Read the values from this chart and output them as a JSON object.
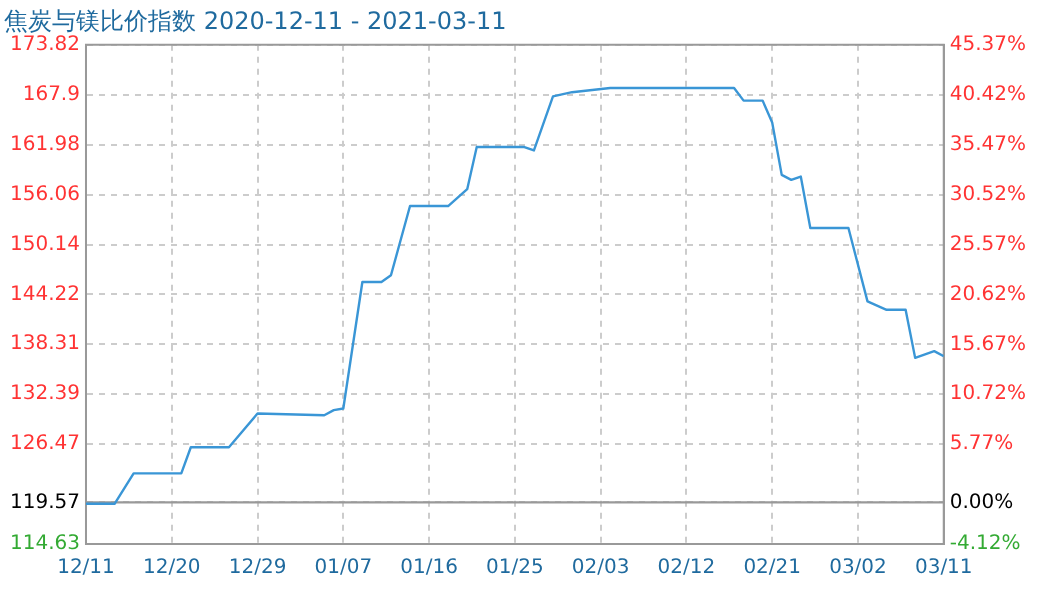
{
  "chart_data": {
    "type": "line",
    "title": "焦炭与镁比价指数 2020-12-11 - 2021-03-11",
    "x": [
      "2020-12-11",
      "2020-12-14",
      "2020-12-16",
      "2020-12-21",
      "2020-12-22",
      "2020-12-26",
      "2020-12-29",
      "2021-01-05",
      "2021-01-06",
      "2021-01-07",
      "2021-01-09",
      "2021-01-11",
      "2021-01-12",
      "2021-01-14",
      "2021-01-18",
      "2021-01-20",
      "2021-01-21",
      "2021-01-26",
      "2021-01-27",
      "2021-01-29",
      "2021-01-31",
      "2021-02-04",
      "2021-02-17",
      "2021-02-18",
      "2021-02-20",
      "2021-02-21",
      "2021-02-22",
      "2021-02-23",
      "2021-02-24",
      "2021-02-25",
      "2021-03-01",
      "2021-03-03",
      "2021-03-05",
      "2021-03-07",
      "2021-03-08",
      "2021-03-10",
      "2021-03-11"
    ],
    "series": [
      {
        "color": "#3a96d6",
        "values": [
          119.4,
          119.4,
          123.0,
          123.0,
          126.1,
          126.1,
          130.1,
          129.9,
          130.5,
          130.7,
          145.7,
          145.7,
          146.5,
          154.7,
          154.7,
          156.7,
          161.7,
          161.7,
          161.3,
          167.7,
          168.2,
          168.7,
          168.7,
          167.2,
          167.2,
          164.6,
          158.4,
          157.8,
          158.2,
          152.1,
          152.1,
          143.4,
          142.4,
          142.4,
          136.7,
          137.5,
          136.9
        ]
      }
    ],
    "xlim": [
      "2020-12-11",
      "2021-03-11"
    ],
    "xticks": [
      {
        "value": "2020-12-11",
        "label": "12/11"
      },
      {
        "value": "2020-12-20",
        "label": "12/20"
      },
      {
        "value": "2020-12-29",
        "label": "12/29"
      },
      {
        "value": "2021-01-07",
        "label": "01/07"
      },
      {
        "value": "2021-01-16",
        "label": "01/16"
      },
      {
        "value": "2021-01-25",
        "label": "01/25"
      },
      {
        "value": "2021-02-03",
        "label": "02/03"
      },
      {
        "value": "2021-02-12",
        "label": "02/12"
      },
      {
        "value": "2021-02-21",
        "label": "02/21"
      },
      {
        "value": "2021-03-02",
        "label": "03/02"
      },
      {
        "value": "2021-03-11",
        "label": "03/11"
      }
    ],
    "ylim": [
      114.63,
      173.82
    ],
    "yticks": [
      114.63,
      119.57,
      126.47,
      132.39,
      138.31,
      144.22,
      150.14,
      156.06,
      161.98,
      167.9,
      173.82
    ],
    "y2lim": [
      -4.12,
      45.37
    ],
    "y2ticks": [
      {
        "value": -4.12,
        "label": "-4.12%"
      },
      {
        "value": 0,
        "label": "0.00%"
      },
      {
        "value": 5.77,
        "label": "5.77%"
      },
      {
        "value": 10.72,
        "label": "10.72%"
      },
      {
        "value": 15.67,
        "label": "15.67%"
      },
      {
        "value": 20.62,
        "label": "20.62%"
      },
      {
        "value": 25.57,
        "label": "25.57%"
      },
      {
        "value": 30.52,
        "label": "30.52%"
      },
      {
        "value": 35.47,
        "label": "35.47%"
      },
      {
        "value": 40.42,
        "label": "40.42%"
      },
      {
        "value": 45.37,
        "label": "45.37%"
      }
    ],
    "ref_lines": [
      {
        "axis": "y",
        "value": 119.57,
        "color": "#999999"
      }
    ],
    "grid": true,
    "legend": false,
    "marker": "none",
    "line_style": "solid"
  }
}
